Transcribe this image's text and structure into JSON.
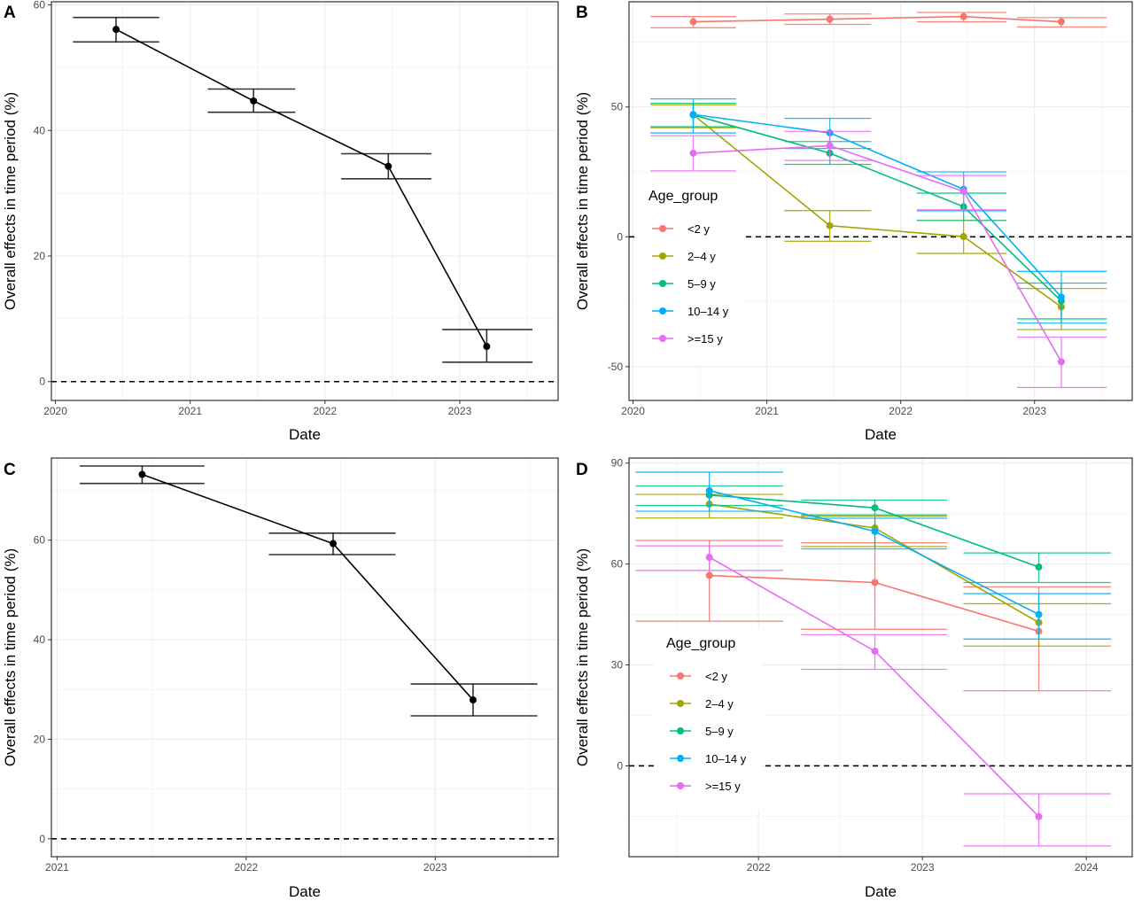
{
  "chart_data": [
    {
      "panel": "A",
      "type": "line",
      "xlabel": "Date",
      "ylabel": "Overall effects in time period (%)",
      "xlim": [
        2019.97,
        2023.73
      ],
      "ylim": [
        -3.0,
        60.5
      ],
      "xticks": [
        2020,
        2021,
        2022,
        2023
      ],
      "yticks": [
        0,
        20,
        40,
        60
      ],
      "grid": true,
      "reference_line": 0,
      "series": [
        {
          "color": "#000000",
          "x": [
            2020.45,
            2021.47,
            2022.47,
            2023.2
          ],
          "y": [
            56.1,
            44.7,
            34.3,
            5.6
          ],
          "ci_low": [
            54.1,
            42.9,
            32.3,
            3.1
          ],
          "ci_high": [
            58.0,
            46.6,
            36.3,
            8.3
          ],
          "span_low": [
            2020.13,
            2021.13,
            2022.12,
            2022.87
          ],
          "span_high": [
            2020.77,
            2021.78,
            2022.79,
            2023.54
          ]
        }
      ]
    },
    {
      "panel": "B",
      "type": "line",
      "xlabel": "Date",
      "ylabel": "Overall effects in time period (%)",
      "xlim": [
        2019.97,
        2023.73
      ],
      "ylim": [
        -63.0,
        90.5
      ],
      "xticks": [
        2020,
        2021,
        2022,
        2023
      ],
      "yticks": [
        -50,
        0,
        50
      ],
      "grid": true,
      "reference_line": 0,
      "legend": {
        "title": "Age_group",
        "placement": "left-center"
      },
      "series": [
        {
          "name": "<2 y",
          "color": "#F8766D",
          "x": [
            2020.45,
            2021.47,
            2022.47,
            2023.2
          ],
          "y": [
            82.8,
            83.8,
            84.8,
            82.8
          ],
          "ci_low": [
            80.5,
            81.8,
            82.8,
            80.8
          ],
          "ci_high": [
            84.8,
            85.8,
            86.4,
            84.4
          ],
          "span_low": [
            2020.13,
            2021.13,
            2022.12,
            2022.87
          ],
          "span_high": [
            2020.77,
            2021.78,
            2022.79,
            2023.54
          ]
        },
        {
          "name": "2–4 y",
          "color": "#A3A500",
          "x": [
            2020.45,
            2021.47,
            2022.47,
            2023.2
          ],
          "y": [
            47.0,
            4.3,
            0.1,
            -27.0
          ],
          "ci_low": [
            42.0,
            -1.7,
            -6.4,
            -35.7
          ],
          "ci_high": [
            50.8,
            10.1,
            6.3,
            -19.9
          ],
          "span_low": [
            2020.13,
            2021.13,
            2022.12,
            2022.87
          ],
          "span_high": [
            2020.77,
            2021.78,
            2022.79,
            2023.54
          ]
        },
        {
          "name": "5–9 y",
          "color": "#00BF7D",
          "x": [
            2020.45,
            2021.47,
            2022.47,
            2023.2
          ],
          "y": [
            46.9,
            32.2,
            11.6,
            -24.7
          ],
          "ci_low": [
            42.4,
            27.9,
            6.3,
            -31.6
          ],
          "ci_high": [
            51.4,
            36.7,
            16.8,
            -17.8
          ],
          "span_low": [
            2020.13,
            2021.13,
            2022.12,
            2022.87
          ],
          "span_high": [
            2020.77,
            2021.78,
            2022.79,
            2023.54
          ]
        },
        {
          "name": "10–14 y",
          "color": "#00B0F6",
          "x": [
            2020.45,
            2021.47,
            2022.47,
            2023.2
          ],
          "y": [
            47.1,
            40.0,
            18.3,
            -23.2
          ],
          "ci_low": [
            40.0,
            34.0,
            10.0,
            -33.2
          ],
          "ci_high": [
            53.1,
            45.6,
            25.0,
            -13.3
          ],
          "span_low": [
            2020.13,
            2021.13,
            2022.12,
            2022.87
          ],
          "span_high": [
            2020.77,
            2021.78,
            2022.79,
            2023.54
          ]
        },
        {
          "name": ">=15 y",
          "color": "#E76BF3",
          "x": [
            2020.45,
            2021.47,
            2022.47,
            2023.2
          ],
          "y": [
            32.2,
            35.1,
            17.5,
            -48.1
          ],
          "ci_low": [
            25.4,
            29.4,
            10.4,
            -58.0
          ],
          "ci_high": [
            38.9,
            40.6,
            23.6,
            -38.6
          ],
          "span_low": [
            2020.13,
            2021.13,
            2022.12,
            2022.87
          ],
          "span_high": [
            2020.77,
            2021.78,
            2022.79,
            2023.54
          ]
        }
      ]
    },
    {
      "panel": "C",
      "type": "line",
      "xlabel": "Date",
      "ylabel": "Overall effects in time period (%)",
      "xlim": [
        2020.97,
        2023.65
      ],
      "ylim": [
        -3.6,
        76.5
      ],
      "xticks": [
        2021,
        2022,
        2023
      ],
      "yticks": [
        0,
        20,
        40,
        60
      ],
      "grid": true,
      "reference_line": 0,
      "series": [
        {
          "color": "#000000",
          "x": [
            2021.45,
            2022.46,
            2023.2
          ],
          "y": [
            73.2,
            59.3,
            27.9
          ],
          "ci_low": [
            71.4,
            57.1,
            24.7
          ],
          "ci_high": [
            74.9,
            61.4,
            31.1
          ],
          "span_low": [
            2021.12,
            2022.12,
            2022.87
          ],
          "span_high": [
            2021.78,
            2022.79,
            2023.54
          ]
        }
      ]
    },
    {
      "panel": "D",
      "type": "line",
      "xlabel": "Date",
      "ylabel": "Overall effects in time period (%)",
      "xlim": [
        2021.21,
        2024.28
      ],
      "ylim": [
        -27.0,
        91.5
      ],
      "xticks": [
        2022,
        2023,
        2024
      ],
      "yticks": [
        0,
        30,
        60,
        90
      ],
      "grid": true,
      "reference_line": 0,
      "legend": {
        "title": "Age_group",
        "placement": "left-center"
      },
      "series": [
        {
          "name": "<2 y",
          "color": "#F8766D",
          "x": [
            2021.7,
            2022.71,
            2023.71
          ],
          "y": [
            56.6,
            54.5,
            40.0
          ],
          "ci_low": [
            43.0,
            40.6,
            22.3
          ],
          "ci_high": [
            67.0,
            66.3,
            53.2
          ],
          "span_low": [
            2021.25,
            2022.26,
            2023.25
          ],
          "span_high": [
            2022.15,
            2023.15,
            2024.15
          ]
        },
        {
          "name": "2–4 y",
          "color": "#A3A500",
          "x": [
            2021.7,
            2022.71,
            2023.71
          ],
          "y": [
            77.8,
            70.7,
            42.6
          ],
          "ci_low": [
            73.7,
            65.2,
            35.6
          ],
          "ci_high": [
            80.7,
            74.2,
            48.2
          ],
          "span_low": [
            2021.25,
            2022.26,
            2023.25
          ],
          "span_high": [
            2022.15,
            2023.15,
            2024.15
          ]
        },
        {
          "name": "5–9 y",
          "color": "#00BF7D",
          "x": [
            2021.7,
            2022.71,
            2023.71
          ],
          "y": [
            80.5,
            76.7,
            59.1
          ],
          "ci_low": [
            77.4,
            74.6,
            54.5
          ],
          "ci_high": [
            83.2,
            79.0,
            63.3
          ],
          "span_low": [
            2021.25,
            2022.26,
            2023.25
          ],
          "span_high": [
            2022.15,
            2023.15,
            2024.15
          ]
        },
        {
          "name": "10–14 y",
          "color": "#00B0F6",
          "x": [
            2021.7,
            2022.71,
            2023.71
          ],
          "y": [
            81.8,
            69.7,
            45.0
          ],
          "ci_low": [
            75.7,
            64.5,
            37.7
          ],
          "ci_high": [
            87.3,
            73.6,
            51.2
          ],
          "span_low": [
            2021.25,
            2022.26,
            2023.25
          ],
          "span_high": [
            2022.15,
            2023.15,
            2024.15
          ]
        },
        {
          "name": ">=15 y",
          "color": "#E76BF3",
          "x": [
            2021.7,
            2022.71,
            2023.71
          ],
          "y": [
            62.0,
            34.1,
            -15.1
          ],
          "ci_low": [
            58.1,
            28.7,
            -23.8
          ],
          "ci_high": [
            65.4,
            39.0,
            -8.3
          ],
          "span_low": [
            2021.25,
            2022.26,
            2023.25
          ],
          "span_high": [
            2022.15,
            2023.15,
            2024.15
          ]
        }
      ]
    }
  ]
}
